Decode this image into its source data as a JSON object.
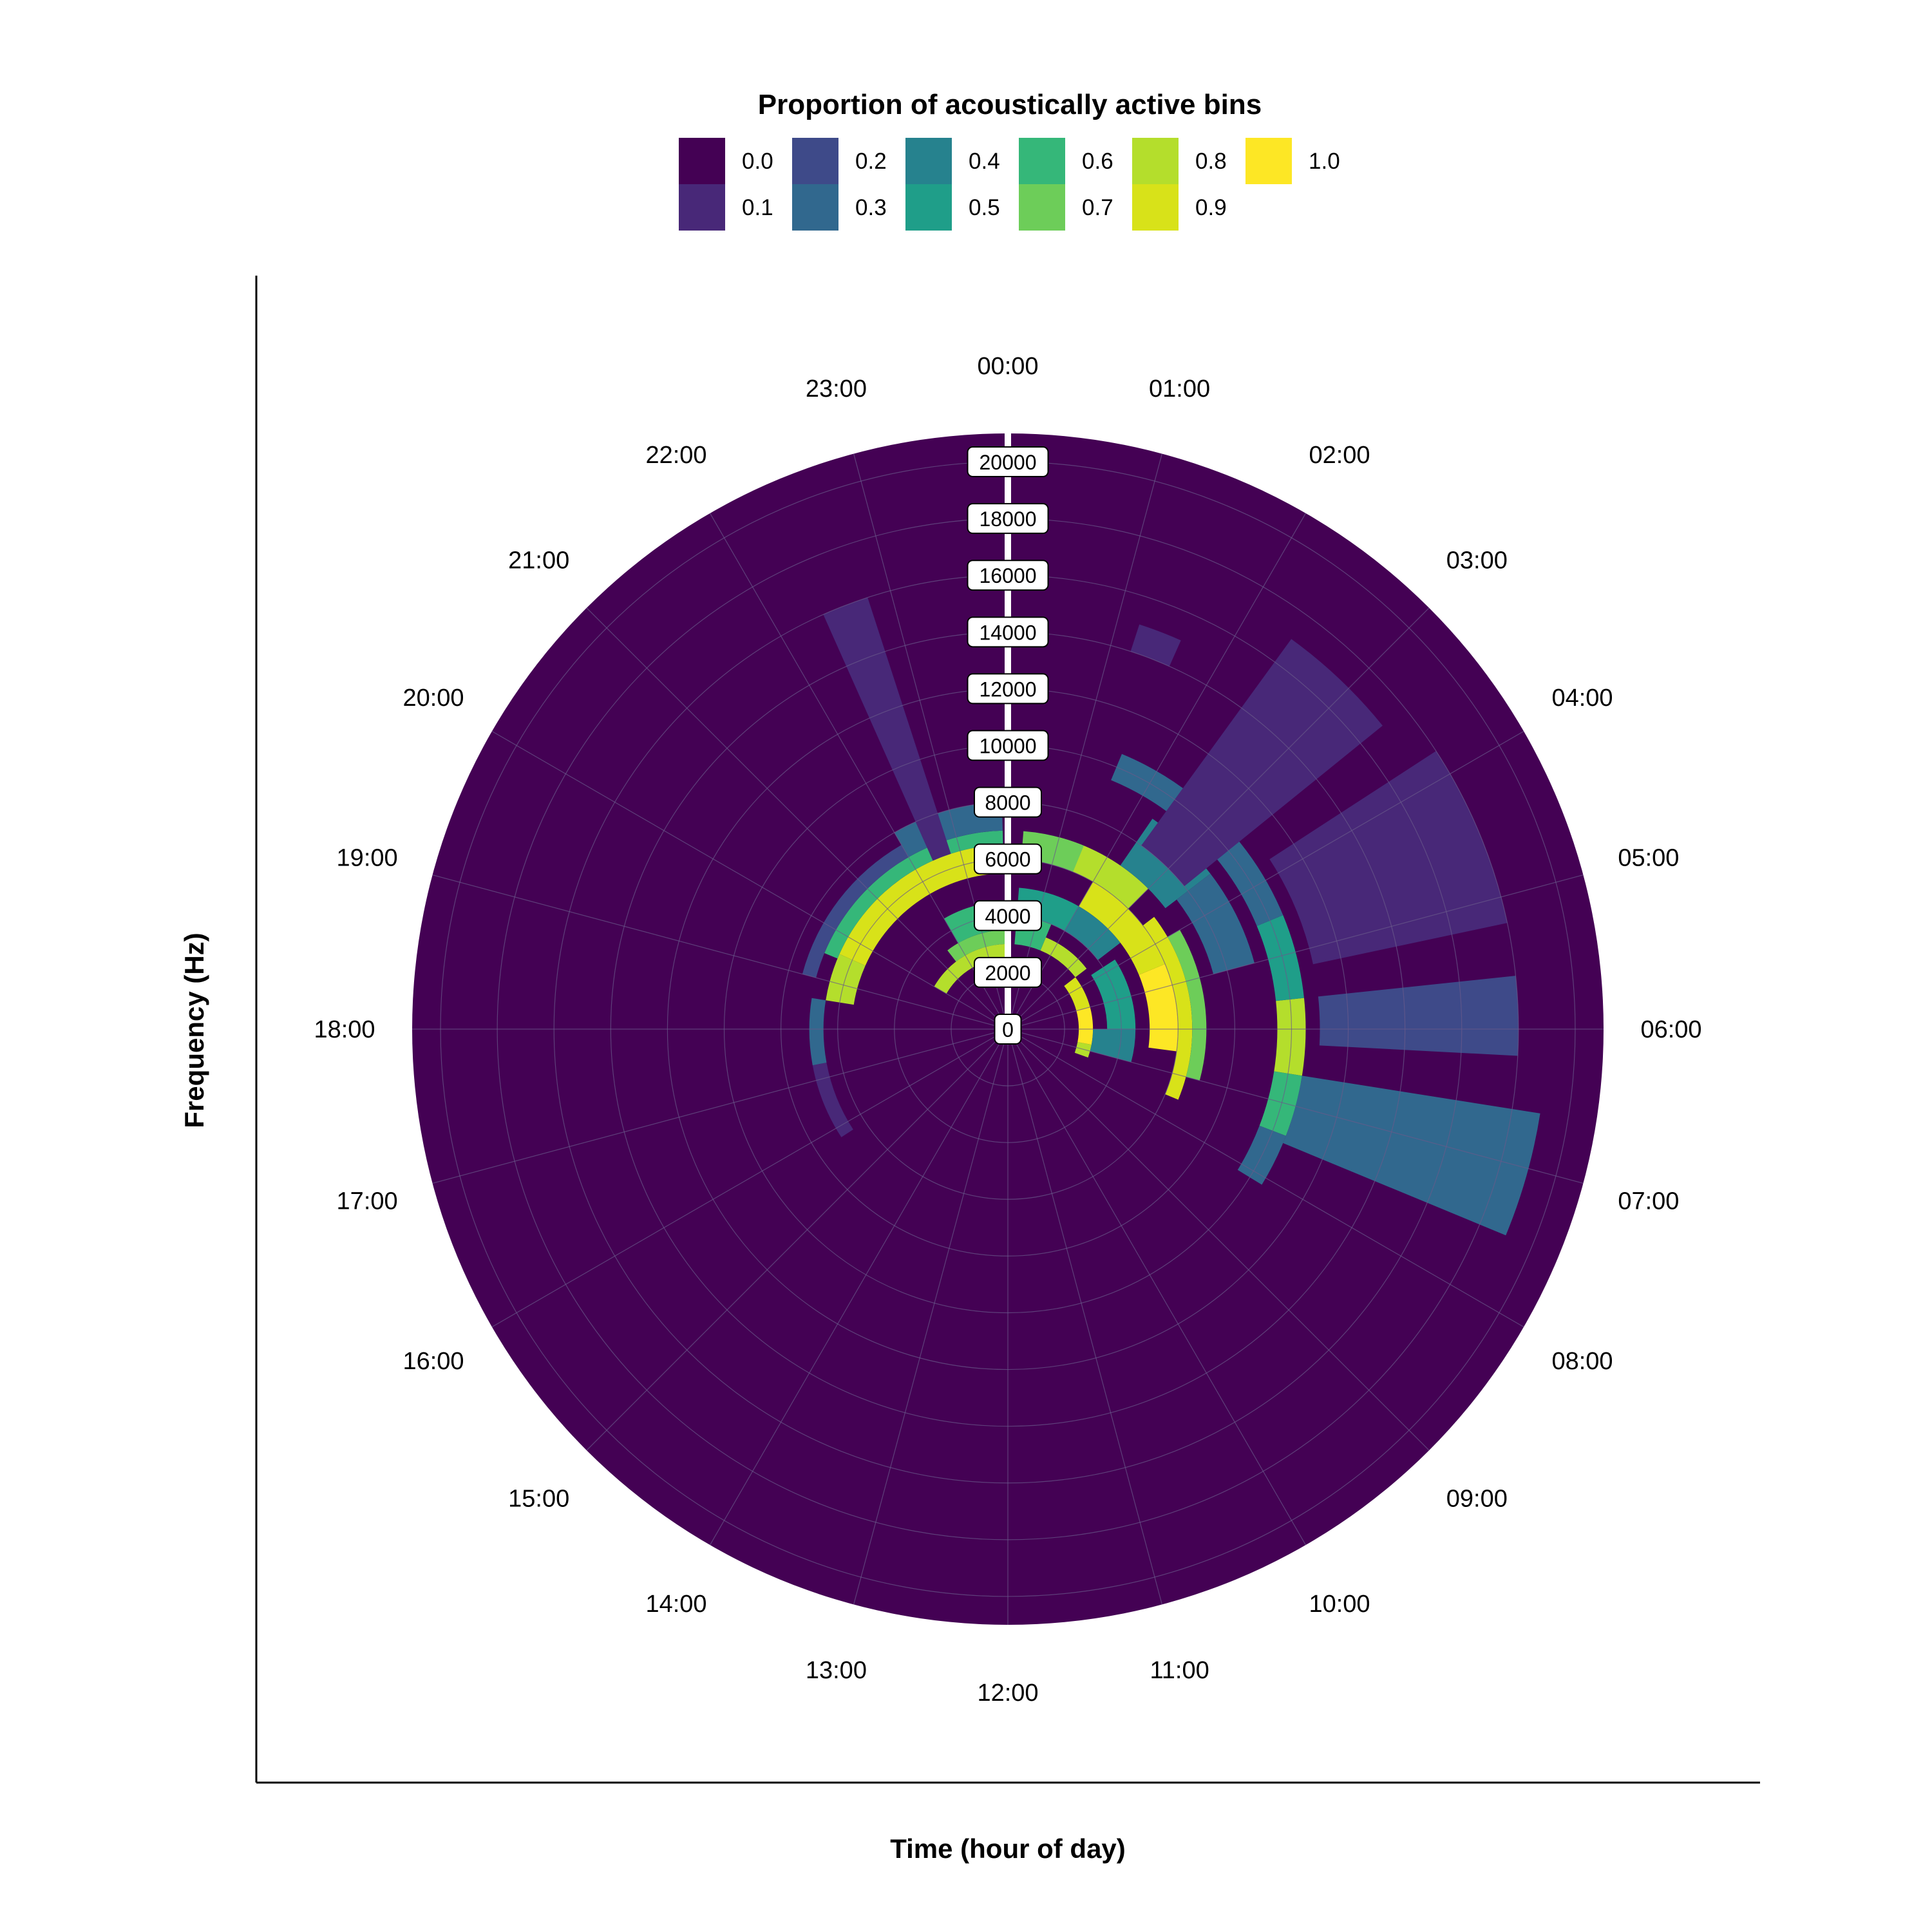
{
  "chart_data": {
    "type": "heatmap",
    "coordinate_system": "polar",
    "title": "",
    "legend_title": "Proportion of acoustically active bins",
    "legend": {
      "position": "top",
      "entries": [
        {
          "label": "0.0",
          "color": "#440154"
        },
        {
          "label": "0.1",
          "color": "#482878"
        },
        {
          "label": "0.2",
          "color": "#3E4A89"
        },
        {
          "label": "0.3",
          "color": "#31688E"
        },
        {
          "label": "0.4",
          "color": "#26828E"
        },
        {
          "label": "0.5",
          "color": "#1F9E89"
        },
        {
          "label": "0.6",
          "color": "#35B779"
        },
        {
          "label": "0.7",
          "color": "#6DCD59"
        },
        {
          "label": "0.8",
          "color": "#B4DE2C"
        },
        {
          "label": "0.9",
          "color": "#D8E219"
        },
        {
          "label": "1.0",
          "color": "#FDE725"
        }
      ]
    },
    "xlabel": "Time (hour of day)",
    "ylabel": "Frequency (Hz)",
    "x_ticks": [
      "00:00",
      "01:00",
      "02:00",
      "03:00",
      "04:00",
      "05:00",
      "06:00",
      "07:00",
      "08:00",
      "09:00",
      "10:00",
      "11:00",
      "12:00",
      "13:00",
      "14:00",
      "15:00",
      "16:00",
      "17:00",
      "18:00",
      "19:00",
      "20:00",
      "21:00",
      "22:00",
      "23:00"
    ],
    "x_range_hours": [
      0,
      24
    ],
    "y_ticks": [
      "0",
      "2000",
      "4000",
      "6000",
      "8000",
      "10000",
      "12000",
      "14000",
      "16000",
      "18000",
      "20000"
    ],
    "y_range_hz": [
      0,
      21000
    ],
    "grid": true,
    "background_value": 0.0,
    "cells": [
      {
        "t0": 4.5,
        "t1": 6.5,
        "f0": 5000,
        "f1": 6000,
        "value": 1.0
      },
      {
        "t0": 3.5,
        "t1": 7.5,
        "f0": 6000,
        "f1": 6500,
        "value": 0.9
      },
      {
        "t0": 4.0,
        "t1": 7.0,
        "f0": 6500,
        "f1": 7000,
        "value": 0.7
      },
      {
        "t0": 2.0,
        "t1": 4.5,
        "f0": 5000,
        "f1": 6000,
        "value": 0.9
      },
      {
        "t0": 1.0,
        "t1": 3.0,
        "f0": 6000,
        "f1": 7000,
        "value": 0.8
      },
      {
        "t0": 0.3,
        "t1": 1.5,
        "f0": 6000,
        "f1": 7000,
        "value": 0.7
      },
      {
        "t0": 5.0,
        "t1": 6.7,
        "f0": 2500,
        "f1": 3000,
        "value": 1.0
      },
      {
        "t0": 3.5,
        "t1": 5.0,
        "f0": 2500,
        "f1": 3000,
        "value": 0.9
      },
      {
        "t0": 6.7,
        "t1": 7.3,
        "f0": 2500,
        "f1": 3000,
        "value": 0.8
      },
      {
        "t0": 1.5,
        "t1": 3.5,
        "f0": 3000,
        "f1": 3500,
        "value": 0.8
      },
      {
        "t0": 0.3,
        "t1": 1.5,
        "f0": 3000,
        "f1": 4000,
        "value": 0.6
      },
      {
        "t0": 2.0,
        "t1": 3.5,
        "f0": 4000,
        "f1": 5000,
        "value": 0.4
      },
      {
        "t0": 0.3,
        "t1": 2.0,
        "f0": 4000,
        "f1": 5000,
        "value": 0.5
      },
      {
        "t0": 3.8,
        "t1": 6.0,
        "f0": 3500,
        "f1": 4500,
        "value": 0.5
      },
      {
        "t0": 6.0,
        "t1": 7.0,
        "f0": 3000,
        "f1": 4500,
        "value": 0.4
      },
      {
        "t0": 19.6,
        "t1": 23.9,
        "f0": 5500,
        "f1": 6500,
        "value": 0.9
      },
      {
        "t0": 18.6,
        "t1": 19.6,
        "f0": 5500,
        "f1": 6500,
        "value": 0.8
      },
      {
        "t0": 19.5,
        "t1": 23.9,
        "f0": 6500,
        "f1": 7000,
        "value": 0.6
      },
      {
        "t0": 22.0,
        "t1": 23.9,
        "f0": 7000,
        "f1": 8000,
        "value": 0.3
      },
      {
        "t0": 19.0,
        "t1": 22.0,
        "f0": 7000,
        "f1": 7500,
        "value": 0.2
      },
      {
        "t0": 20.0,
        "t1": 23.9,
        "f0": 2500,
        "f1": 3000,
        "value": 0.8
      },
      {
        "t0": 21.5,
        "t1": 23.9,
        "f0": 3000,
        "f1": 3500,
        "value": 0.7
      },
      {
        "t0": 22.0,
        "t1": 23.9,
        "f0": 3500,
        "f1": 4500,
        "value": 0.6
      },
      {
        "t0": 17.3,
        "t1": 18.6,
        "f0": 6500,
        "f1": 7000,
        "value": 0.3
      },
      {
        "t0": 15.8,
        "t1": 17.3,
        "f0": 6500,
        "f1": 7000,
        "value": 0.1
      },
      {
        "t0": 5.6,
        "t1": 6.6,
        "f0": 9500,
        "f1": 10500,
        "value": 0.8
      },
      {
        "t0": 6.6,
        "t1": 7.4,
        "f0": 9500,
        "f1": 10500,
        "value": 0.6
      },
      {
        "t0": 4.5,
        "t1": 5.6,
        "f0": 9500,
        "f1": 10500,
        "value": 0.5
      },
      {
        "t0": 3.3,
        "t1": 4.5,
        "f0": 9500,
        "f1": 10500,
        "value": 0.3
      },
      {
        "t0": 7.4,
        "t1": 8.1,
        "f0": 9500,
        "f1": 10500,
        "value": 0.3
      },
      {
        "t0": 1.5,
        "t1": 3.3,
        "f0": 9500,
        "f1": 10500,
        "value": 0.3
      },
      {
        "t0": 2.3,
        "t1": 3.5,
        "f0": 7000,
        "f1": 9000,
        "value": 0.4
      },
      {
        "t0": 3.5,
        "t1": 5.0,
        "f0": 7500,
        "f1": 9000,
        "value": 0.3
      },
      {
        "t0": 6.7,
        "t1": 7.2,
        "f0": 10500,
        "f1": 18000,
        "value": 0.5
      },
      {
        "t0": 6.6,
        "t1": 7.5,
        "f0": 10500,
        "f1": 19000,
        "value": 0.3
      },
      {
        "t0": 5.6,
        "t1": 6.2,
        "f0": 11000,
        "f1": 18000,
        "value": 0.2
      },
      {
        "t0": 3.8,
        "t1": 5.2,
        "f0": 11000,
        "f1": 18000,
        "value": 0.1
      },
      {
        "t0": 2.4,
        "t1": 3.4,
        "f0": 8000,
        "f1": 17000,
        "value": 0.1
      },
      {
        "t0": 22.4,
        "t1": 22.8,
        "f0": 6500,
        "f1": 16000,
        "value": 0.1
      },
      {
        "t0": 1.2,
        "t1": 1.6,
        "f0": 14000,
        "f1": 15000,
        "value": 0.1
      }
    ]
  }
}
